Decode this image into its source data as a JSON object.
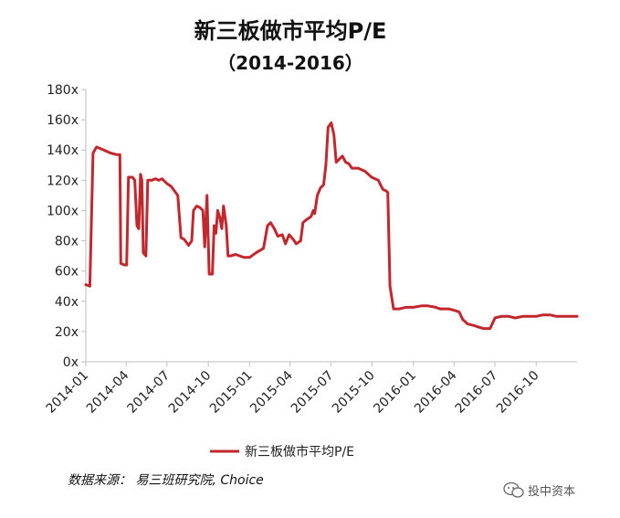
{
  "chart_data": {
    "type": "line",
    "title": "新三板做市平均P/E",
    "subtitle": "（2014-2016）",
    "xlabel": "",
    "ylabel": "",
    "ylim": [
      0,
      180
    ],
    "y_ticks": [
      0,
      20,
      40,
      60,
      80,
      100,
      120,
      140,
      160,
      180
    ],
    "y_tick_labels": [
      "0x",
      "20x",
      "40x",
      "60x",
      "80x",
      "100x",
      "120x",
      "140x",
      "160x",
      "180x"
    ],
    "x_ticks": [
      "2014-01",
      "2014-04",
      "2014-07",
      "2014-10",
      "2015-01",
      "2015-04",
      "2015-07",
      "2015-10",
      "2016-01",
      "2016-04",
      "2016-07",
      "2016-10"
    ],
    "x_range": [
      "2014-01-01",
      "2016-12-31"
    ],
    "grid": false,
    "legend_position": "bottom",
    "series": [
      {
        "name": "新三板做市平均P/E",
        "color": "#c1272d",
        "points": [
          [
            "2014-01-01",
            51
          ],
          [
            "2014-01-10",
            50
          ],
          [
            "2014-01-17",
            138
          ],
          [
            "2014-01-25",
            142
          ],
          [
            "2014-02-10",
            140
          ],
          [
            "2014-02-25",
            138
          ],
          [
            "2014-03-10",
            137
          ],
          [
            "2014-03-18",
            137
          ],
          [
            "2014-03-20",
            65
          ],
          [
            "2014-03-28",
            64
          ],
          [
            "2014-04-02",
            64
          ],
          [
            "2014-04-06",
            122
          ],
          [
            "2014-04-15",
            122
          ],
          [
            "2014-04-20",
            120
          ],
          [
            "2014-04-25",
            90
          ],
          [
            "2014-04-29",
            88
          ],
          [
            "2014-05-03",
            124
          ],
          [
            "2014-05-06",
            120
          ],
          [
            "2014-05-09",
            72
          ],
          [
            "2014-05-15",
            70
          ],
          [
            "2014-05-19",
            120
          ],
          [
            "2014-05-28",
            120
          ],
          [
            "2014-06-05",
            121
          ],
          [
            "2014-06-13",
            120
          ],
          [
            "2014-06-20",
            121
          ],
          [
            "2014-06-30",
            118
          ],
          [
            "2014-07-10",
            116
          ],
          [
            "2014-07-25",
            110
          ],
          [
            "2014-08-01",
            82
          ],
          [
            "2014-08-08",
            81
          ],
          [
            "2014-08-18",
            77
          ],
          [
            "2014-08-25",
            80
          ],
          [
            "2014-08-29",
            100
          ],
          [
            "2014-09-05",
            103
          ],
          [
            "2014-09-12",
            102
          ],
          [
            "2014-09-19",
            100
          ],
          [
            "2014-09-23",
            76
          ],
          [
            "2014-09-28",
            110
          ],
          [
            "2014-10-03",
            58
          ],
          [
            "2014-10-10",
            58
          ],
          [
            "2014-10-14",
            90
          ],
          [
            "2014-10-18",
            85
          ],
          [
            "2014-10-22",
            100
          ],
          [
            "2014-10-27",
            95
          ],
          [
            "2014-10-31",
            88
          ],
          [
            "2014-11-04",
            103
          ],
          [
            "2014-11-10",
            90
          ],
          [
            "2014-11-14",
            70
          ],
          [
            "2014-11-20",
            70
          ],
          [
            "2014-12-01",
            71
          ],
          [
            "2014-12-10",
            70
          ],
          [
            "2014-12-20",
            69
          ],
          [
            "2015-01-01",
            69
          ],
          [
            "2015-01-15",
            72
          ],
          [
            "2015-02-01",
            75
          ],
          [
            "2015-02-10",
            90
          ],
          [
            "2015-02-17",
            92
          ],
          [
            "2015-02-25",
            88
          ],
          [
            "2015-03-05",
            83
          ],
          [
            "2015-03-15",
            84
          ],
          [
            "2015-03-22",
            78
          ],
          [
            "2015-03-30",
            84
          ],
          [
            "2015-04-08",
            81
          ],
          [
            "2015-04-15",
            78
          ],
          [
            "2015-04-25",
            80
          ],
          [
            "2015-04-30",
            92
          ],
          [
            "2015-05-08",
            94
          ],
          [
            "2015-05-18",
            96
          ],
          [
            "2015-05-23",
            100
          ],
          [
            "2015-05-26",
            98
          ],
          [
            "2015-06-01",
            110
          ],
          [
            "2015-06-08",
            115
          ],
          [
            "2015-06-15",
            117
          ],
          [
            "2015-06-20",
            130
          ],
          [
            "2015-06-25",
            155
          ],
          [
            "2015-07-02",
            158
          ],
          [
            "2015-07-08",
            150
          ],
          [
            "2015-07-13",
            132
          ],
          [
            "2015-07-20",
            134
          ],
          [
            "2015-07-27",
            136
          ],
          [
            "2015-08-03",
            132
          ],
          [
            "2015-08-10",
            131
          ],
          [
            "2015-08-17",
            128
          ],
          [
            "2015-08-31",
            128
          ],
          [
            "2015-09-15",
            126
          ],
          [
            "2015-09-30",
            122
          ],
          [
            "2015-10-15",
            120
          ],
          [
            "2015-10-25",
            114
          ],
          [
            "2015-11-01",
            113
          ],
          [
            "2015-11-05",
            112
          ],
          [
            "2015-11-10",
            50
          ],
          [
            "2015-11-18",
            35
          ],
          [
            "2015-12-01",
            35
          ],
          [
            "2015-12-15",
            36
          ],
          [
            "2016-01-01",
            36
          ],
          [
            "2016-01-20",
            37
          ],
          [
            "2016-02-01",
            37
          ],
          [
            "2016-02-20",
            36
          ],
          [
            "2016-03-01",
            35
          ],
          [
            "2016-03-20",
            35
          ],
          [
            "2016-04-01",
            34
          ],
          [
            "2016-04-12",
            33
          ],
          [
            "2016-04-20",
            28
          ],
          [
            "2016-05-01",
            25
          ],
          [
            "2016-05-15",
            24
          ],
          [
            "2016-05-25",
            23
          ],
          [
            "2016-06-05",
            22
          ],
          [
            "2016-06-20",
            22
          ],
          [
            "2016-07-01",
            29
          ],
          [
            "2016-07-15",
            30
          ],
          [
            "2016-08-01",
            30
          ],
          [
            "2016-08-15",
            29
          ],
          [
            "2016-09-01",
            30
          ],
          [
            "2016-09-15",
            30
          ],
          [
            "2016-10-01",
            30
          ],
          [
            "2016-10-15",
            31
          ],
          [
            "2016-11-01",
            31
          ],
          [
            "2016-11-15",
            30
          ],
          [
            "2016-12-01",
            30
          ],
          [
            "2016-12-15",
            30
          ],
          [
            "2016-12-31",
            30
          ]
        ]
      }
    ]
  },
  "footer": {
    "source": "数据来源： 易三班研究院, Choice",
    "watermark": "投中资本"
  }
}
